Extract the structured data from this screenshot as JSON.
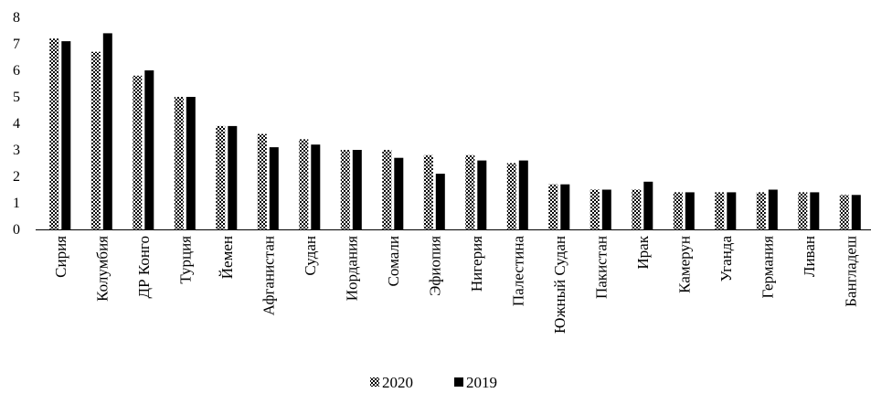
{
  "chart_data": {
    "type": "bar",
    "title": "",
    "xlabel": "",
    "ylabel": "",
    "ylim": [
      0,
      8
    ],
    "yticks": [
      0,
      1,
      2,
      3,
      4,
      5,
      6,
      7,
      8
    ],
    "grid": false,
    "legend_position": "bottom",
    "categories": [
      "Сирия",
      "Колумбия",
      "ДР Конго",
      "Турция",
      "Йемен",
      "Афганистан",
      "Судан",
      "Иордания",
      "Сомали",
      "Эфиопия",
      "Нигерия",
      "Палестина",
      "Южный Судан",
      "Пакистан",
      "Ирак",
      "Камерун",
      "Уганда",
      "Германия",
      "Ливан",
      "Бангладеш"
    ],
    "series": [
      {
        "name": "2020",
        "pattern": "checkered",
        "color": "#000000",
        "values": [
          7.2,
          6.7,
          5.8,
          5.0,
          3.9,
          3.6,
          3.4,
          3.0,
          3.0,
          2.8,
          2.8,
          2.5,
          1.7,
          1.5,
          1.5,
          1.4,
          1.4,
          1.4,
          1.4,
          1.3
        ]
      },
      {
        "name": "2019",
        "pattern": "solid",
        "color": "#000000",
        "values": [
          7.1,
          7.4,
          6.0,
          5.0,
          3.9,
          3.1,
          3.2,
          3.0,
          2.7,
          2.1,
          2.6,
          2.6,
          1.7,
          1.5,
          1.8,
          1.4,
          1.4,
          1.5,
          1.4,
          1.3
        ]
      }
    ]
  }
}
